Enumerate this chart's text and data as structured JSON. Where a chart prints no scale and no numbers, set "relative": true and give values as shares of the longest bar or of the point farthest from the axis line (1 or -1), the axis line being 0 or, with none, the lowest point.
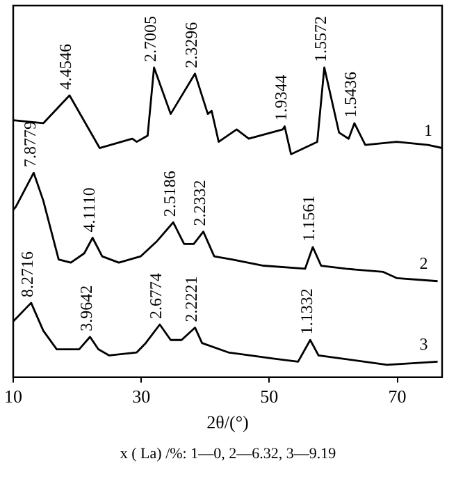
{
  "chart_data": {
    "type": "line",
    "relative": true,
    "xlabel": "2θ/(°)",
    "xlim": [
      10,
      77
    ],
    "xticks": [
      10,
      30,
      50,
      70
    ],
    "grid": false,
    "legend": false,
    "marker": "none",
    "line_style": "solid",
    "series": [
      {
        "name": "1",
        "color": "#000000",
        "x": [
          10,
          14.7,
          18.8,
          23.5,
          28.6,
          29.3,
          31.0,
          32.0,
          34.6,
          38.4,
          40.4,
          41.0,
          42.1,
          44.9,
          46.8,
          52.1,
          52.4,
          53.4,
          57.5,
          58.6,
          60.9,
          62.4,
          63.3,
          65.0,
          69.9,
          74.8,
          77.0
        ],
        "values": [
          0.83,
          0.82,
          0.91,
          0.74,
          0.77,
          0.76,
          0.78,
          1.0,
          0.85,
          0.98,
          0.85,
          0.86,
          0.76,
          0.8,
          0.77,
          0.8,
          0.81,
          0.72,
          0.76,
          1.0,
          0.79,
          0.77,
          0.82,
          0.75,
          0.76,
          0.75,
          0.74
        ]
      },
      {
        "name": "2",
        "color": "#000000",
        "x": [
          10,
          10.4,
          13.2,
          14.7,
          17.1,
          19.0,
          21.1,
          22.4,
          23.9,
          26.5,
          29.9,
          32.5,
          35.0,
          36.7,
          38.2,
          39.7,
          41.4,
          44.2,
          49.1,
          55.6,
          56.8,
          58.1,
          62.0,
          67.8,
          69.9,
          76.3
        ],
        "values": [
          0.54,
          0.55,
          0.66,
          0.57,
          0.38,
          0.37,
          0.4,
          0.45,
          0.39,
          0.37,
          0.39,
          0.44,
          0.5,
          0.43,
          0.43,
          0.47,
          0.39,
          0.38,
          0.36,
          0.35,
          0.42,
          0.36,
          0.35,
          0.34,
          0.32,
          0.31
        ]
      },
      {
        "name": "3",
        "color": "#000000",
        "x": [
          10,
          12.8,
          14.7,
          16.8,
          20.3,
          22.0,
          23.3,
          25.0,
          29.3,
          30.7,
          32.9,
          34.6,
          36.3,
          38.4,
          39.5,
          43.6,
          50.6,
          54.5,
          56.4,
          57.7,
          61.3,
          68.4,
          76.3
        ],
        "values": [
          0.18,
          0.24,
          0.15,
          0.09,
          0.09,
          0.13,
          0.09,
          0.07,
          0.08,
          0.11,
          0.17,
          0.12,
          0.12,
          0.16,
          0.11,
          0.08,
          0.06,
          0.05,
          0.12,
          0.07,
          0.06,
          0.04,
          0.05
        ]
      }
    ],
    "annotations": [
      {
        "text": "4.4546",
        "x": 18.8,
        "y": 0.91
      },
      {
        "text": "2.7005",
        "x": 32.0,
        "y": 1.0
      },
      {
        "text": "2.3296",
        "x": 38.4,
        "y": 0.98
      },
      {
        "text": "1.9344",
        "x": 52.4,
        "y": 0.81
      },
      {
        "text": "1.5572",
        "x": 58.6,
        "y": 1.0
      },
      {
        "text": "1.5436",
        "x": 63.3,
        "y": 0.82
      },
      {
        "text": "7.8779",
        "x": 13.2,
        "y": 0.66
      },
      {
        "text": "4.1110",
        "x": 22.4,
        "y": 0.45
      },
      {
        "text": "2.5186",
        "x": 35.0,
        "y": 0.5
      },
      {
        "text": "2.2332",
        "x": 39.7,
        "y": 0.47
      },
      {
        "text": "1.1561",
        "x": 56.8,
        "y": 0.42
      },
      {
        "text": "8.2716",
        "x": 12.8,
        "y": 0.24
      },
      {
        "text": "3.9642",
        "x": 22.0,
        "y": 0.13
      },
      {
        "text": "2.6774",
        "x": 32.9,
        "y": 0.17
      },
      {
        "text": "2.2221",
        "x": 38.4,
        "y": 0.16
      },
      {
        "text": "1.1332",
        "x": 56.4,
        "y": 0.12
      },
      "x ( La) /%:  1—0,  2—6.32,  3—9.19"
    ]
  }
}
